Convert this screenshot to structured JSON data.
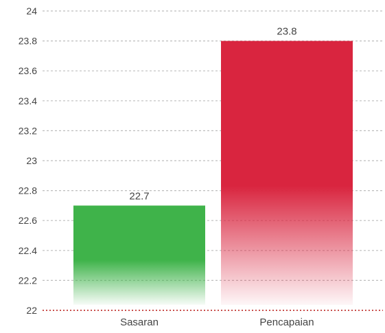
{
  "chart_data": {
    "type": "bar",
    "categories": [
      "Sasaran",
      "Pencapaian"
    ],
    "values": [
      22.7,
      23.8
    ],
    "value_labels": [
      "22.7",
      "23.8"
    ],
    "y_ticks": [
      22,
      22.2,
      22.4,
      22.6,
      22.8,
      23,
      23.2,
      23.4,
      23.6,
      23.8,
      24
    ],
    "y_tick_labels": [
      "22",
      "22.2",
      "22.4",
      "22.6",
      "22.8",
      "23",
      "23.2",
      "23.4",
      "23.6",
      "23.8",
      "24"
    ],
    "ylim": [
      22,
      24
    ],
    "grid": true,
    "grid_style": "dashed",
    "bar_colors": [
      "#3fb34a",
      "#d9253f"
    ],
    "bar_style": "vertical gradient fading to white at the bottom",
    "text_color": "#444444",
    "grid_color": "#bdbdbd",
    "baseline_color": "#c9504d"
  }
}
